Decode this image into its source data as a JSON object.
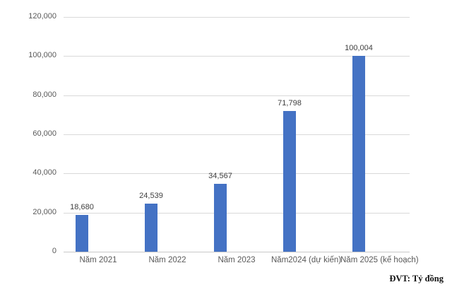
{
  "chart_data": {
    "type": "bar",
    "title": "",
    "xlabel": "",
    "ylabel": "",
    "categories": [
      "Năm 2021",
      "Năm 2022",
      "Năm 2023",
      "Năm2024 (dự kiến)",
      "Năm 2025 (kế hoạch)"
    ],
    "values": [
      18680,
      24539,
      34567,
      71798,
      100004
    ],
    "value_labels": [
      "18,680",
      "24,539",
      "34,567",
      "71,798",
      "100,004"
    ],
    "ylim": [
      0,
      120000
    ],
    "ytick_step": 20000,
    "ytick_labels": [
      "0",
      "20,000",
      "40,000",
      "60,000",
      "80,000",
      "100,000",
      "120,000"
    ],
    "grid": true,
    "legend": false
  },
  "colors": {
    "bar": "#4472C4",
    "gridline": "#d9d9d9",
    "axis_line": "#c9c9c9",
    "tick_text": "#595959",
    "data_label_text": "#404040",
    "note_text": "#111111"
  },
  "footer": {
    "unit_note": "ĐVT: Tỷ đồng"
  }
}
